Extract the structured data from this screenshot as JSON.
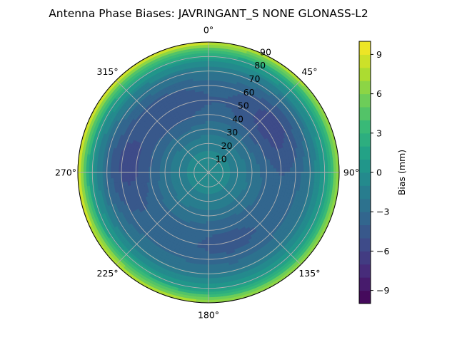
{
  "chart_data": {
    "type": "heatmap",
    "subtype": "polar-contour",
    "title": "Antenna Phase Biases: JAVRINGANT_S    NONE GLONASS-L2",
    "theta_direction": "clockwise",
    "theta_zero": "top",
    "theta_ticks": [
      {
        "deg": 0,
        "label": "0°"
      },
      {
        "deg": 45,
        "label": "45°"
      },
      {
        "deg": 90,
        "label": "90°"
      },
      {
        "deg": 135,
        "label": "135°"
      },
      {
        "deg": 180,
        "label": "180°"
      },
      {
        "deg": 225,
        "label": "225°"
      },
      {
        "deg": 270,
        "label": "270°"
      },
      {
        "deg": 315,
        "label": "315°"
      }
    ],
    "r_ticks": [
      10,
      20,
      30,
      40,
      50,
      60,
      70,
      80,
      90
    ],
    "r_range": [
      0,
      90
    ],
    "grid": true,
    "colorbar": {
      "label": "Bias (mm)",
      "colormap": "viridis",
      "range": [
        -10,
        10
      ],
      "ticks": [
        -9,
        -6,
        -3,
        0,
        3,
        6,
        9
      ],
      "tick_labels": [
        "−9",
        "−6",
        "−3",
        "0",
        "3",
        "6",
        "9"
      ],
      "levels": 20
    },
    "field_profile": {
      "zenith_angle": [
        0,
        10,
        20,
        30,
        40,
        50,
        60,
        70,
        80,
        85,
        90
      ],
      "bias_mm": [
        0,
        -0.5,
        -1.4,
        -2.2,
        -3.2,
        -3.6,
        -3.2,
        -1.8,
        1.0,
        3.5,
        7.0
      ]
    },
    "field_lobes": [
      {
        "azimuth_deg": 55,
        "zenith_deg": 55,
        "bias_mm": -2.0
      },
      {
        "azimuth_deg": 275,
        "zenith_deg": 60,
        "bias_mm": -2.0
      },
      {
        "azimuth_deg": 330,
        "zenith_deg": 50,
        "bias_mm": -1.2
      },
      {
        "azimuth_deg": 165,
        "zenith_deg": 50,
        "bias_mm": -0.8
      }
    ],
    "west_edge_max_bias_mm": 9.5
  }
}
